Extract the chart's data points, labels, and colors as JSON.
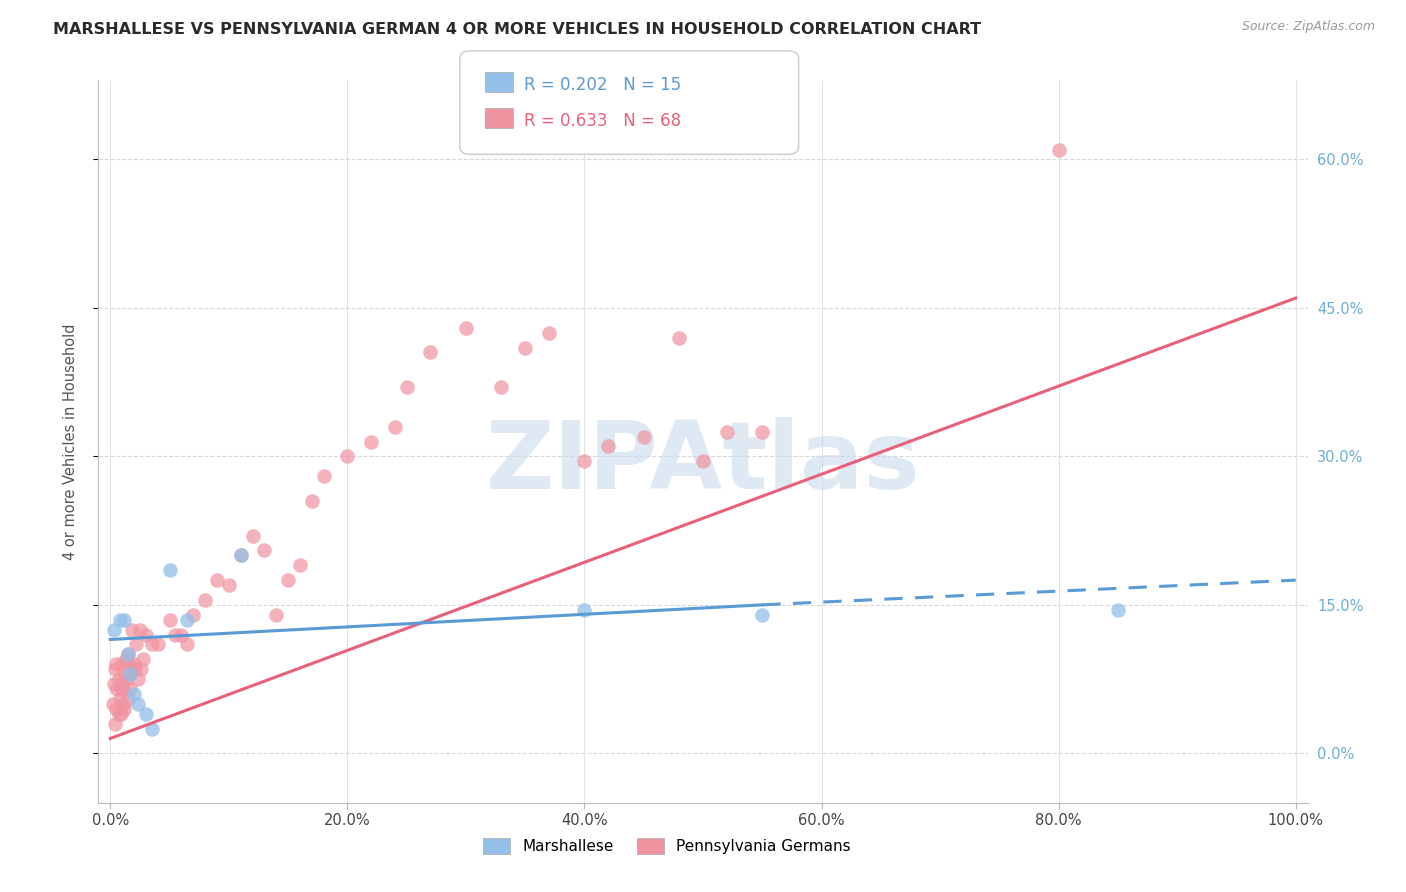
{
  "title": "MARSHALLESE VS PENNSYLVANIA GERMAN 4 OR MORE VEHICLES IN HOUSEHOLD CORRELATION CHART",
  "source": "Source: ZipAtlas.com",
  "ylabel": "4 or more Vehicles in Household",
  "watermark": "ZIPAtlas",
  "xlim": [
    -1.0,
    101.0
  ],
  "ylim": [
    -5.0,
    68.0
  ],
  "yticks_pct": [
    0,
    15,
    30,
    45,
    60
  ],
  "xticks_pct": [
    0,
    20,
    40,
    60,
    80,
    100
  ],
  "blue_color": "#92c0e8",
  "pink_color": "#f093a0",
  "blue_trendline_color": "#5b9bd5",
  "pink_trendline_color": "#e8607a",
  "blue_label": "Marshallese",
  "pink_label": "Pennsylvania Germans",
  "R_blue": 0.202,
  "N_blue": 15,
  "R_pink": 0.633,
  "N_pink": 68,
  "blue_scatter_x": [
    0.3,
    0.8,
    1.2,
    1.5,
    1.7,
    2.0,
    2.3,
    3.0,
    3.5,
    5.0,
    6.5,
    11.0,
    40.0,
    55.0,
    85.0
  ],
  "blue_scatter_y": [
    12.5,
    13.5,
    13.5,
    10.0,
    8.0,
    6.0,
    5.0,
    4.0,
    2.5,
    18.5,
    13.5,
    20.0,
    14.5,
    14.0,
    14.5
  ],
  "pink_scatter_x": [
    0.2,
    0.3,
    0.4,
    0.4,
    0.5,
    0.5,
    0.6,
    0.7,
    0.7,
    0.8,
    0.9,
    1.0,
    1.0,
    1.1,
    1.1,
    1.2,
    1.2,
    1.3,
    1.4,
    1.5,
    1.5,
    1.6,
    1.7,
    1.7,
    1.8,
    2.0,
    2.1,
    2.2,
    2.3,
    2.5,
    2.6,
    2.8,
    3.0,
    3.5,
    4.0,
    5.0,
    5.5,
    6.0,
    6.5,
    7.0,
    8.0,
    9.0,
    10.0,
    11.0,
    12.0,
    13.0,
    14.0,
    15.0,
    16.0,
    17.0,
    18.0,
    20.0,
    22.0,
    24.0,
    25.0,
    27.0,
    30.0,
    33.0,
    35.0,
    37.0,
    40.0,
    42.0,
    45.0,
    48.0,
    50.0,
    52.0,
    55.0,
    80.0
  ],
  "pink_scatter_y": [
    5.0,
    7.0,
    3.0,
    8.5,
    4.5,
    9.0,
    6.5,
    4.0,
    7.5,
    5.5,
    4.0,
    9.0,
    6.5,
    7.0,
    5.0,
    8.0,
    4.5,
    9.5,
    7.5,
    10.0,
    5.5,
    9.0,
    8.0,
    6.5,
    12.5,
    9.0,
    8.5,
    11.0,
    7.5,
    12.5,
    8.5,
    9.5,
    12.0,
    11.0,
    11.0,
    13.5,
    12.0,
    12.0,
    11.0,
    14.0,
    15.5,
    17.5,
    17.0,
    20.0,
    22.0,
    20.5,
    14.0,
    17.5,
    19.0,
    25.5,
    28.0,
    30.0,
    31.5,
    33.0,
    37.0,
    40.5,
    43.0,
    37.0,
    41.0,
    42.5,
    29.5,
    31.0,
    32.0,
    42.0,
    29.5,
    32.5,
    32.5,
    61.0
  ],
  "grid_color": "#d8d8d8",
  "bg_color": "#ffffff",
  "right_tick_color": "#6baed6",
  "pink_line_start_x": 0.0,
  "pink_line_start_y": 1.5,
  "pink_line_end_x": 100.0,
  "pink_line_end_y": 46.0,
  "blue_solid_start_x": 0.0,
  "blue_solid_start_y": 11.5,
  "blue_solid_end_x": 55.0,
  "blue_solid_end_y": 15.0,
  "blue_dash_start_x": 55.0,
  "blue_dash_start_y": 15.0,
  "blue_dash_end_x": 100.0,
  "blue_dash_end_y": 17.5
}
